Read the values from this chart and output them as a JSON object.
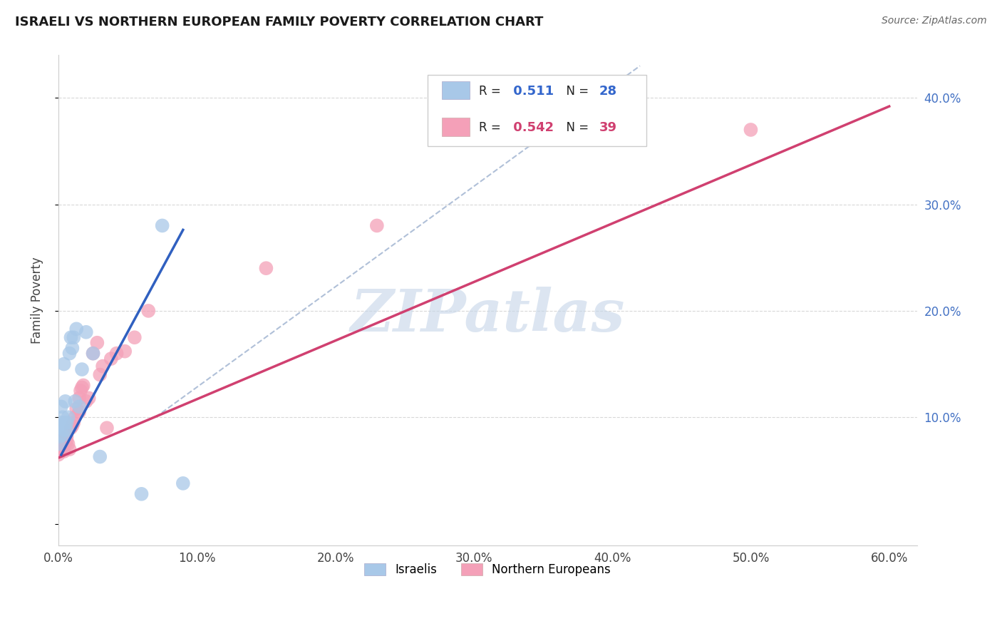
{
  "title": "ISRAELI VS NORTHERN EUROPEAN FAMILY POVERTY CORRELATION CHART",
  "source": "Source: ZipAtlas.com",
  "ylabel": "Family Poverty",
  "watermark": "ZIPatlas",
  "xlim": [
    0.0,
    0.62
  ],
  "ylim": [
    -0.02,
    0.44
  ],
  "xticks": [
    0.0,
    0.1,
    0.2,
    0.3,
    0.4,
    0.5,
    0.6
  ],
  "xticklabels": [
    "0.0%",
    "10.0%",
    "20.0%",
    "30.0%",
    "40.0%",
    "50.0%",
    "60.0%"
  ],
  "yticks_right": [
    0.1,
    0.2,
    0.3,
    0.4
  ],
  "yticklabels_right": [
    "10.0%",
    "20.0%",
    "30.0%",
    "40.0%"
  ],
  "legend_label_israelis": "Israelis",
  "legend_label_northern": "Northern Europeans",
  "blue_color": "#a8c8e8",
  "pink_color": "#f4a0b8",
  "blue_line_color": "#3060c0",
  "pink_line_color": "#d04070",
  "ref_line_color": "#b0c0d8",
  "grid_color": "#d8d8d8",
  "israeli_x": [
    0.0,
    0.001,
    0.001,
    0.002,
    0.002,
    0.003,
    0.003,
    0.004,
    0.004,
    0.005,
    0.005,
    0.006,
    0.006,
    0.007,
    0.008,
    0.009,
    0.01,
    0.011,
    0.012,
    0.013,
    0.015,
    0.017,
    0.02,
    0.025,
    0.03,
    0.06,
    0.075,
    0.09
  ],
  "israeli_y": [
    0.075,
    0.082,
    0.092,
    0.095,
    0.11,
    0.083,
    0.1,
    0.088,
    0.15,
    0.095,
    0.115,
    0.088,
    0.095,
    0.1,
    0.16,
    0.175,
    0.165,
    0.175,
    0.115,
    0.183,
    0.11,
    0.145,
    0.18,
    0.16,
    0.063,
    0.028,
    0.28,
    0.038
  ],
  "northern_x": [
    0.0,
    0.001,
    0.001,
    0.002,
    0.002,
    0.003,
    0.003,
    0.004,
    0.005,
    0.005,
    0.006,
    0.006,
    0.007,
    0.008,
    0.009,
    0.01,
    0.011,
    0.012,
    0.013,
    0.015,
    0.015,
    0.016,
    0.017,
    0.018,
    0.02,
    0.022,
    0.025,
    0.028,
    0.03,
    0.032,
    0.035,
    0.038,
    0.042,
    0.048,
    0.055,
    0.065,
    0.15,
    0.23,
    0.5
  ],
  "northern_y": [
    0.065,
    0.068,
    0.075,
    0.072,
    0.078,
    0.072,
    0.075,
    0.068,
    0.08,
    0.075,
    0.082,
    0.078,
    0.075,
    0.07,
    0.09,
    0.092,
    0.095,
    0.1,
    0.108,
    0.105,
    0.118,
    0.125,
    0.128,
    0.13,
    0.115,
    0.118,
    0.16,
    0.17,
    0.14,
    0.148,
    0.09,
    0.155,
    0.16,
    0.162,
    0.175,
    0.2,
    0.24,
    0.28,
    0.37
  ],
  "blue_line_x": [
    0.002,
    0.09
  ],
  "blue_line_y_intercept": 0.06,
  "blue_line_slope": 2.4,
  "pink_line_x_start": 0.0,
  "pink_line_x_end": 0.6,
  "pink_line_y_intercept": 0.062,
  "pink_line_slope": 0.55
}
